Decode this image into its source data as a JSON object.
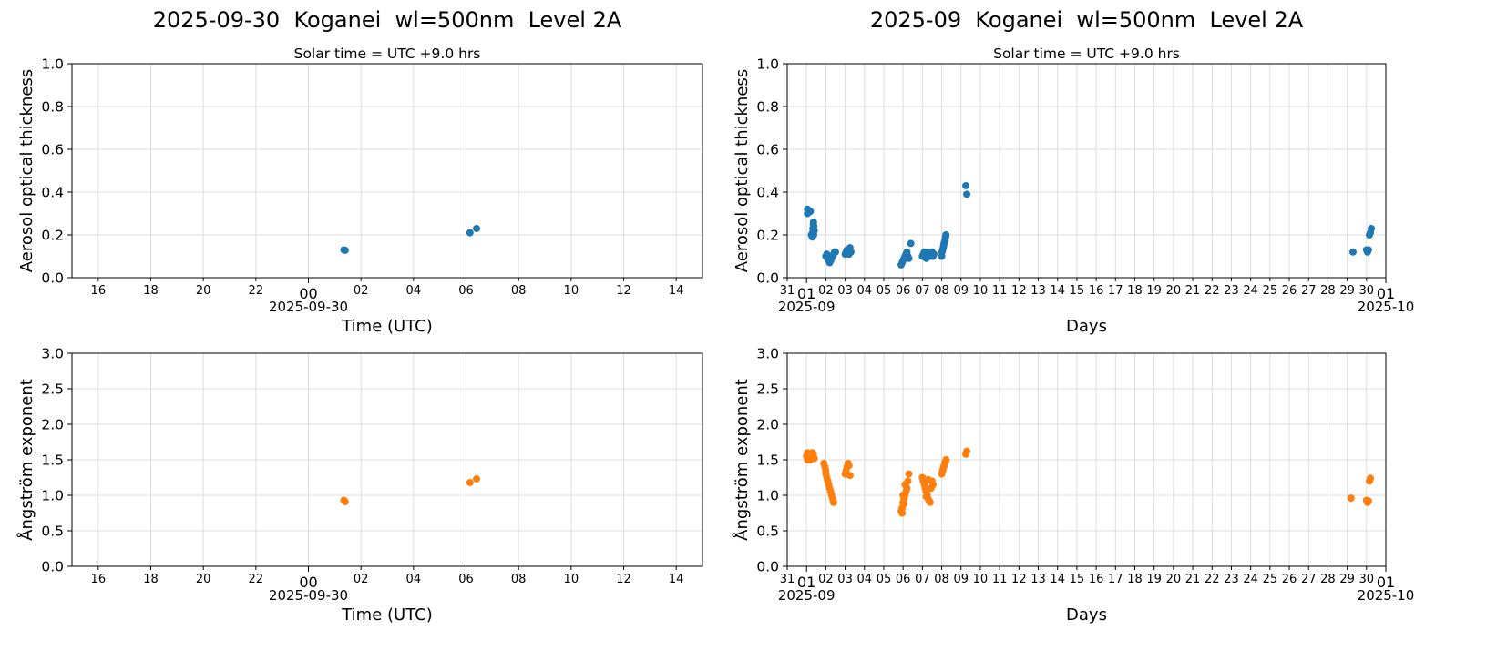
{
  "left": {
    "title": "2025-09-30  Koganei  wl=500nm  Level 2A",
    "subtitle": "Solar time = UTC +9.0 hrs"
  },
  "right": {
    "title": "2025-09  Koganei  wl=500nm  Level 2A",
    "subtitle": "Solar time = UTC +9.0 hrs"
  },
  "colors": {
    "aod": "#1f77b4",
    "angstrom": "#ff7f0e",
    "grid": "#dddddd"
  },
  "chart_data": [
    {
      "id": "daily-aod",
      "type": "scatter",
      "ylabel": "Aerosol optical thickness",
      "xlabel": "Time (UTC)",
      "ylim": [
        0,
        1.0
      ],
      "yticks": [
        "0.0",
        "0.2",
        "0.4",
        "0.6",
        "0.8",
        "1.0"
      ],
      "xlim": [
        -9,
        15
      ],
      "xticks": [
        {
          "v": -8,
          "l": "16"
        },
        {
          "v": -6,
          "l": "18"
        },
        {
          "v": -4,
          "l": "20"
        },
        {
          "v": -2,
          "l": "22"
        },
        {
          "v": 0,
          "l": "00",
          "major": true
        },
        {
          "v": 2,
          "l": "02"
        },
        {
          "v": 4,
          "l": "04"
        },
        {
          "v": 6,
          "l": "06"
        },
        {
          "v": 8,
          "l": "08"
        },
        {
          "v": 10,
          "l": "10"
        },
        {
          "v": 12,
          "l": "12"
        },
        {
          "v": 14,
          "l": "14"
        }
      ],
      "x_sublabel": "2025-09-30",
      "series": [
        {
          "name": "AOD",
          "color": "aod",
          "x": [
            1.35,
            1.4,
            6.15,
            6.4
          ],
          "y": [
            0.13,
            0.128,
            0.21,
            0.23
          ]
        }
      ]
    },
    {
      "id": "monthly-aod",
      "type": "scatter",
      "ylabel": "Aerosol optical thickness",
      "xlabel": "Days",
      "ylim": [
        0,
        1.0
      ],
      "yticks": [
        "0.0",
        "0.2",
        "0.4",
        "0.6",
        "0.8",
        "1.0"
      ],
      "xlim": [
        0,
        31
      ],
      "xticks_days": [
        "31",
        "01",
        "02",
        "03",
        "04",
        "05",
        "06",
        "07",
        "08",
        "09",
        "10",
        "11",
        "12",
        "13",
        "14",
        "15",
        "16",
        "17",
        "18",
        "19",
        "20",
        "21",
        "22",
        "23",
        "24",
        "25",
        "26",
        "27",
        "28",
        "29",
        "30",
        "01"
      ],
      "major_ticks": [
        1,
        31
      ],
      "x_sublabels": [
        "2025-09",
        "2025-10"
      ],
      "series": [
        {
          "name": "AOD",
          "color": "aod",
          "x": [
            1.05,
            1.1,
            1.15,
            1.2,
            1.25,
            1.3,
            1.32,
            1.33,
            1.35,
            1.36,
            1.38,
            1.4,
            1.05,
            1.35,
            1.37,
            2.0,
            2.05,
            2.1,
            2.15,
            2.2,
            2.25,
            2.3,
            2.35,
            2.4,
            2.45,
            2.5,
            2.1,
            2.2,
            3.0,
            3.05,
            3.1,
            3.15,
            3.2,
            3.25,
            3.3,
            5.9,
            5.95,
            6.0,
            6.05,
            6.1,
            6.15,
            6.2,
            6.25,
            6.3,
            6.4,
            7.0,
            7.05,
            7.1,
            7.15,
            7.2,
            7.25,
            7.3,
            7.35,
            7.4,
            7.45,
            7.5,
            7.55,
            7.6,
            8.0,
            8.02,
            8.05,
            8.08,
            8.1,
            8.12,
            8.15,
            8.18,
            8.2,
            8.22,
            9.25,
            9.3,
            29.3,
            30.0,
            30.05,
            30.1,
            30.15,
            30.2,
            30.25
          ],
          "y": [
            0.32,
            0.31,
            0.31,
            0.31,
            0.2,
            0.19,
            0.21,
            0.23,
            0.25,
            0.26,
            0.24,
            0.22,
            0.3,
            0.22,
            0.2,
            0.1,
            0.11,
            0.09,
            0.08,
            0.07,
            0.08,
            0.09,
            0.1,
            0.11,
            0.12,
            0.12,
            0.1,
            0.08,
            0.11,
            0.12,
            0.13,
            0.12,
            0.11,
            0.14,
            0.12,
            0.06,
            0.07,
            0.08,
            0.09,
            0.1,
            0.11,
            0.12,
            0.1,
            0.09,
            0.16,
            0.1,
            0.11,
            0.12,
            0.1,
            0.09,
            0.1,
            0.11,
            0.12,
            0.1,
            0.11,
            0.12,
            0.1,
            0.11,
            0.1,
            0.12,
            0.13,
            0.14,
            0.15,
            0.16,
            0.17,
            0.18,
            0.19,
            0.2,
            0.43,
            0.39,
            0.12,
            0.13,
            0.12,
            0.13,
            0.2,
            0.21,
            0.23
          ]
        }
      ]
    },
    {
      "id": "daily-angstrom",
      "type": "scatter",
      "ylabel": "Ångström exponent",
      "xlabel": "Time (UTC)",
      "ylim": [
        0,
        3.0
      ],
      "yticks": [
        "0.0",
        "0.5",
        "1.0",
        "1.5",
        "2.0",
        "2.5",
        "3.0"
      ],
      "xlim": [
        -9,
        15
      ],
      "xticks": [
        {
          "v": -8,
          "l": "16"
        },
        {
          "v": -6,
          "l": "18"
        },
        {
          "v": -4,
          "l": "20"
        },
        {
          "v": -2,
          "l": "22"
        },
        {
          "v": 0,
          "l": "00",
          "major": true
        },
        {
          "v": 2,
          "l": "02"
        },
        {
          "v": 4,
          "l": "04"
        },
        {
          "v": 6,
          "l": "06"
        },
        {
          "v": 8,
          "l": "08"
        },
        {
          "v": 10,
          "l": "10"
        },
        {
          "v": 12,
          "l": "12"
        },
        {
          "v": 14,
          "l": "14"
        }
      ],
      "x_sublabel": "2025-09-30",
      "series": [
        {
          "name": "Angstrom",
          "color": "angstrom",
          "x": [
            1.35,
            1.4,
            6.15,
            6.4
          ],
          "y": [
            0.93,
            0.91,
            1.18,
            1.23
          ]
        }
      ]
    },
    {
      "id": "monthly-angstrom",
      "type": "scatter",
      "ylabel": "Ångström exponent",
      "xlabel": "Days",
      "ylim": [
        0,
        3.0
      ],
      "yticks": [
        "0.0",
        "0.5",
        "1.0",
        "1.5",
        "2.0",
        "2.5",
        "3.0"
      ],
      "xlim": [
        0,
        31
      ],
      "xticks_days": [
        "31",
        "01",
        "02",
        "03",
        "04",
        "05",
        "06",
        "07",
        "08",
        "09",
        "10",
        "11",
        "12",
        "13",
        "14",
        "15",
        "16",
        "17",
        "18",
        "19",
        "20",
        "21",
        "22",
        "23",
        "24",
        "25",
        "26",
        "27",
        "28",
        "29",
        "30",
        "01"
      ],
      "major_ticks": [
        1,
        31
      ],
      "x_sublabels": [
        "2025-09",
        "2025-10"
      ],
      "series": [
        {
          "name": "Angstrom",
          "color": "angstrom",
          "x": [
            1.0,
            1.05,
            1.1,
            1.15,
            1.2,
            1.25,
            1.3,
            1.35,
            1.4,
            1.05,
            1.2,
            1.3,
            1.9,
            1.95,
            2.0,
            2.05,
            2.1,
            2.15,
            2.2,
            2.25,
            2.3,
            2.35,
            2.4,
            2.0,
            2.1,
            3.0,
            3.05,
            3.1,
            3.15,
            3.2,
            3.25,
            5.9,
            5.95,
            6.0,
            6.05,
            6.1,
            6.15,
            6.2,
            6.25,
            6.3,
            6.0,
            6.1,
            5.95,
            6.05,
            7.0,
            7.05,
            7.1,
            7.15,
            7.2,
            7.25,
            7.3,
            7.35,
            7.4,
            7.45,
            7.5,
            7.55,
            7.2,
            7.3,
            8.0,
            8.03,
            8.06,
            8.1,
            8.13,
            8.16,
            8.2,
            8.23,
            9.25,
            9.3,
            29.2,
            30.0,
            30.05,
            30.1,
            30.15,
            30.2
          ],
          "y": [
            1.55,
            1.6,
            1.58,
            1.52,
            1.5,
            1.55,
            1.6,
            1.58,
            1.52,
            1.5,
            1.57,
            1.53,
            1.45,
            1.4,
            1.3,
            1.25,
            1.2,
            1.15,
            1.1,
            1.05,
            1.0,
            0.95,
            0.9,
            1.35,
            1.2,
            1.3,
            1.35,
            1.4,
            1.45,
            1.42,
            1.28,
            0.78,
            0.82,
            0.9,
            0.95,
            1.0,
            1.05,
            1.1,
            1.2,
            1.3,
            1.0,
            1.15,
            0.75,
            0.88,
            1.25,
            1.2,
            1.15,
            1.1,
            1.05,
            1.0,
            0.95,
            0.92,
            0.9,
            1.1,
            1.2,
            1.15,
            0.98,
            1.22,
            1.3,
            1.33,
            1.36,
            1.4,
            1.42,
            1.45,
            1.48,
            1.5,
            1.58,
            1.62,
            0.96,
            0.93,
            0.9,
            0.92,
            1.2,
            1.24
          ]
        }
      ]
    }
  ]
}
